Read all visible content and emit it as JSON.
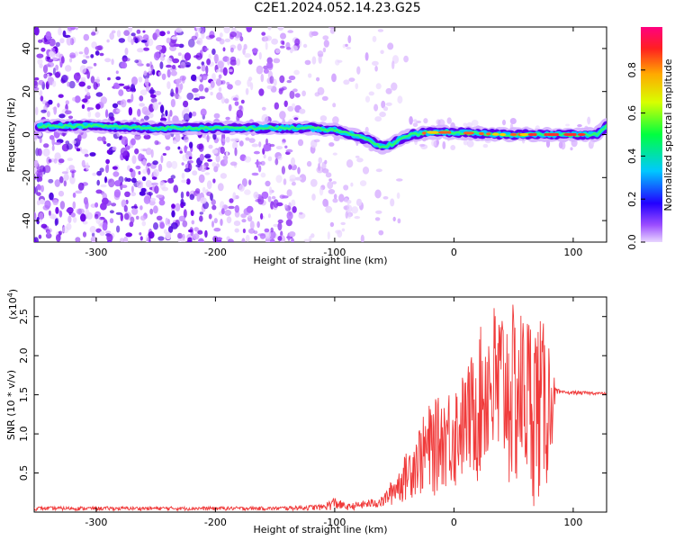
{
  "title": "C2E1.2024.052.14.23.G25",
  "colors": {
    "snr_line": "#f03a3a",
    "spectrum_low": "#e6c8ff",
    "spectrum_main": "#7a1fe6"
  },
  "chart_data": [
    {
      "type": "heatmap",
      "name": "spectrogram",
      "xlabel": "Height of straight line (km)",
      "ylabel": "Frequency (Hz)",
      "xlim": [
        -352,
        128
      ],
      "ylim": [
        -50,
        50
      ],
      "xticks": [
        -300,
        -200,
        -100,
        0,
        100
      ],
      "yticks": [
        -40,
        -20,
        0,
        20,
        40
      ],
      "grid": false,
      "colorbar": {
        "label": "Normalized spectral amplitude",
        "range": [
          0,
          1
        ],
        "ticks": [
          "0.0",
          "0.2",
          "0.4",
          "0.6",
          "0.8"
        ],
        "colormap": "rainbow (violet to red)"
      },
      "ridge": {
        "description": "dominant frequency track near 0 Hz",
        "points": [
          {
            "x": -340,
            "y": 4
          },
          {
            "x": -300,
            "y": 4
          },
          {
            "x": -250,
            "y": 3
          },
          {
            "x": -200,
            "y": 3
          },
          {
            "x": -150,
            "y": 3
          },
          {
            "x": -120,
            "y": 3
          },
          {
            "x": -100,
            "y": 2
          },
          {
            "x": -85,
            "y": 0
          },
          {
            "x": -70,
            "y": -3
          },
          {
            "x": -60,
            "y": -6
          },
          {
            "x": -50,
            "y": -4
          },
          {
            "x": -45,
            "y": -2
          },
          {
            "x": -35,
            "y": 0
          },
          {
            "x": -20,
            "y": 1
          },
          {
            "x": 0,
            "y": 1
          },
          {
            "x": 40,
            "y": 0
          },
          {
            "x": 80,
            "y": 0
          },
          {
            "x": 120,
            "y": 0
          },
          {
            "x": 128,
            "y": 4
          }
        ]
      }
    },
    {
      "type": "line",
      "name": "snr",
      "xlabel": "Height of straight line (km)",
      "ylabel": "SNR (10 * v/v)",
      "multiplier": "(x10",
      "multiplier_exp": "4",
      "xlim": [
        -352,
        128
      ],
      "ylim": [
        0,
        2.75
      ],
      "xticks": [
        -300,
        -200,
        -100,
        0,
        100
      ],
      "yticks": [
        0.5,
        1.0,
        1.5,
        2.0,
        2.5
      ],
      "ytick_labels": [
        "0.5",
        "1.0",
        "1.5",
        "2.0",
        "2.5"
      ],
      "grid": false,
      "envelope": {
        "x": [
          -352,
          -150,
          -110,
          -100,
          -90,
          -60,
          -45,
          -30,
          -20,
          -10,
          0,
          10,
          20,
          30,
          35,
          40,
          50,
          60,
          70,
          80,
          85,
          90,
          100,
          128
        ],
        "upper": [
          0.07,
          0.07,
          0.1,
          0.2,
          0.1,
          0.2,
          0.6,
          1.1,
          1.4,
          1.5,
          1.7,
          1.8,
          2.3,
          2.6,
          2.75,
          2.7,
          2.65,
          2.6,
          2.55,
          2.3,
          1.6,
          1.55,
          1.55,
          1.53
        ],
        "lower": [
          0.02,
          0.02,
          0.02,
          0.02,
          0.02,
          0.05,
          0.1,
          0.2,
          0.1,
          0.3,
          0.2,
          0.4,
          0.3,
          0.5,
          0.0,
          0.3,
          0.1,
          0.2,
          0.0,
          0.3,
          1.45,
          1.5,
          1.5,
          1.5
        ]
      }
    }
  ]
}
